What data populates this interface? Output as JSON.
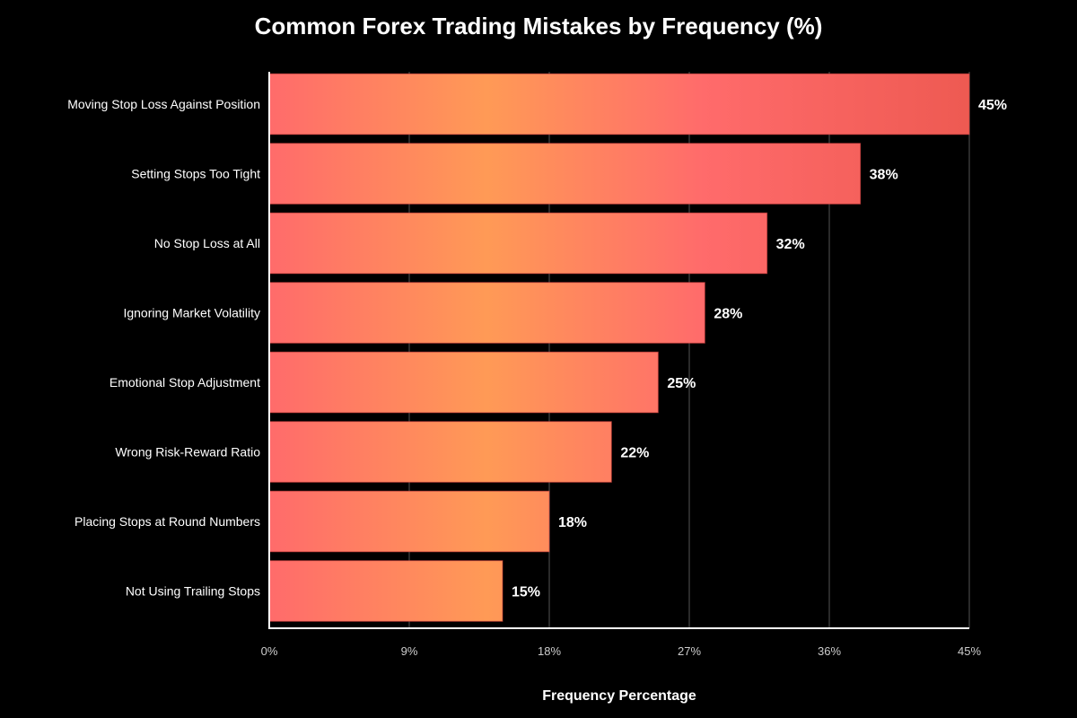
{
  "chart_data": {
    "type": "bar",
    "orientation": "horizontal",
    "title": "Common Forex Trading Mistakes by Frequency (%)",
    "xlabel": "Frequency Percentage",
    "ylabel": "",
    "xlim": [
      0,
      45
    ],
    "x_ticks": [
      "0%",
      "9%",
      "18%",
      "27%",
      "36%",
      "45%"
    ],
    "grid": true,
    "legend": null,
    "categories": [
      "Moving Stop Loss Against Position",
      "Setting Stops Too Tight",
      "No Stop Loss at All",
      "Ignoring Market Volatility",
      "Emotional Stop Adjustment",
      "Wrong Risk-Reward Ratio",
      "Placing Stops at Round Numbers",
      "Not Using Trailing Stops"
    ],
    "values": [
      45,
      38,
      32,
      28,
      25,
      22,
      18,
      15
    ],
    "value_labels": [
      "45%",
      "38%",
      "32%",
      "28%",
      "25%",
      "22%",
      "18%",
      "15%"
    ]
  },
  "colors": {
    "background": "#000000",
    "gradient_stops": [
      "#ff6b6b",
      "#ff9a56",
      "#ff6b6b",
      "#ee5a52"
    ],
    "grid": "#2a2a2a",
    "axis": "#ffffff",
    "text": "#ffffff",
    "tick_text": "#cccccc"
  }
}
